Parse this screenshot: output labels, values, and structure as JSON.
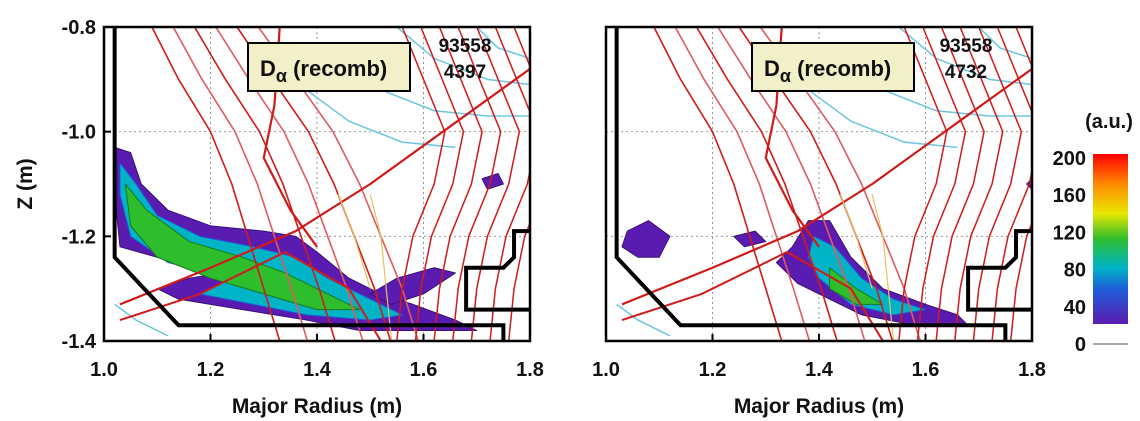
{
  "chart_data": [
    {
      "type": "heatmap",
      "panel": "left",
      "shot": "93558",
      "time": "4397",
      "label_main": "D",
      "label_sub": "α",
      "label_rest": " (recomb)",
      "xlabel": "Major Radius (m)",
      "ylabel": "Z (m)",
      "xlim": [
        1.0,
        1.8
      ],
      "ylim": [
        -1.4,
        -0.8
      ],
      "xticks": [
        "1.0",
        "1.2",
        "1.4",
        "1.6",
        "1.8"
      ],
      "yticks": [
        "-0.8",
        "-1.0",
        "-1.2",
        "-1.4"
      ],
      "grid": true,
      "emission_regions": [
        {
          "level": "low",
          "points": [
            [
              1.02,
              -1.03
            ],
            [
              1.05,
              -1.04
            ],
            [
              1.07,
              -1.1
            ],
            [
              1.12,
              -1.15
            ],
            [
              1.2,
              -1.18
            ],
            [
              1.3,
              -1.19
            ],
            [
              1.36,
              -1.2
            ],
            [
              1.4,
              -1.23
            ],
            [
              1.46,
              -1.28
            ],
            [
              1.52,
              -1.31
            ],
            [
              1.58,
              -1.33
            ],
            [
              1.66,
              -1.36
            ],
            [
              1.7,
              -1.38
            ],
            [
              1.6,
              -1.38
            ],
            [
              1.48,
              -1.38
            ],
            [
              1.38,
              -1.36
            ],
            [
              1.26,
              -1.34
            ],
            [
              1.14,
              -1.32
            ],
            [
              1.1,
              -1.3
            ],
            [
              1.16,
              -1.28
            ],
            [
              1.22,
              -1.27
            ],
            [
              1.1,
              -1.24
            ],
            [
              1.03,
              -1.22
            ],
            [
              1.02,
              -1.12
            ]
          ]
        },
        {
          "level": "mid",
          "points": [
            [
              1.03,
              -1.06
            ],
            [
              1.06,
              -1.1
            ],
            [
              1.1,
              -1.16
            ],
            [
              1.18,
              -1.2
            ],
            [
              1.28,
              -1.22
            ],
            [
              1.36,
              -1.24
            ],
            [
              1.42,
              -1.28
            ],
            [
              1.5,
              -1.32
            ],
            [
              1.56,
              -1.35
            ],
            [
              1.5,
              -1.36
            ],
            [
              1.38,
              -1.35
            ],
            [
              1.28,
              -1.33
            ],
            [
              1.18,
              -1.31
            ],
            [
              1.24,
              -1.28
            ],
            [
              1.12,
              -1.25
            ],
            [
              1.05,
              -1.2
            ],
            [
              1.03,
              -1.12
            ]
          ]
        },
        {
          "level": "high",
          "points": [
            [
              1.04,
              -1.1
            ],
            [
              1.08,
              -1.15
            ],
            [
              1.16,
              -1.21
            ],
            [
              1.26,
              -1.24
            ],
            [
              1.34,
              -1.27
            ],
            [
              1.42,
              -1.31
            ],
            [
              1.48,
              -1.34
            ],
            [
              1.4,
              -1.34
            ],
            [
              1.3,
              -1.31
            ],
            [
              1.2,
              -1.28
            ],
            [
              1.1,
              -1.24
            ],
            [
              1.05,
              -1.18
            ]
          ]
        },
        {
          "level": "low",
          "points": [
            [
              1.5,
              -1.31
            ],
            [
              1.55,
              -1.28
            ],
            [
              1.62,
              -1.26
            ],
            [
              1.66,
              -1.27
            ],
            [
              1.6,
              -1.31
            ],
            [
              1.54,
              -1.33
            ]
          ]
        },
        {
          "level": "low",
          "points": [
            [
              1.71,
              -1.09
            ],
            [
              1.74,
              -1.08
            ],
            [
              1.75,
              -1.1
            ],
            [
              1.72,
              -1.11
            ]
          ]
        }
      ]
    },
    {
      "type": "heatmap",
      "panel": "right",
      "shot": "93558",
      "time": "4732",
      "label_main": "D",
      "label_sub": "α",
      "label_rest": " (recomb)",
      "xlabel": "Major Radius (m)",
      "xlim": [
        1.0,
        1.8
      ],
      "ylim": [
        -1.4,
        -0.8
      ],
      "xticks": [
        "1.0",
        "1.2",
        "1.4",
        "1.6",
        "1.8"
      ],
      "grid": true,
      "emission_regions": [
        {
          "level": "low",
          "points": [
            [
              1.04,
              -1.19
            ],
            [
              1.08,
              -1.17
            ],
            [
              1.12,
              -1.2
            ],
            [
              1.1,
              -1.24
            ],
            [
              1.06,
              -1.24
            ],
            [
              1.03,
              -1.22
            ]
          ]
        },
        {
          "level": "low",
          "points": [
            [
              1.24,
              -1.2
            ],
            [
              1.28,
              -1.19
            ],
            [
              1.3,
              -1.21
            ],
            [
              1.26,
              -1.22
            ]
          ]
        },
        {
          "level": "low",
          "points": [
            [
              1.32,
              -1.25
            ],
            [
              1.35,
              -1.22
            ],
            [
              1.38,
              -1.17
            ],
            [
              1.42,
              -1.17
            ],
            [
              1.46,
              -1.24
            ],
            [
              1.52,
              -1.3
            ],
            [
              1.6,
              -1.33
            ],
            [
              1.66,
              -1.35
            ],
            [
              1.68,
              -1.37
            ],
            [
              1.58,
              -1.37
            ],
            [
              1.48,
              -1.35
            ],
            [
              1.42,
              -1.32
            ],
            [
              1.36,
              -1.29
            ]
          ]
        },
        {
          "level": "mid",
          "points": [
            [
              1.39,
              -1.2
            ],
            [
              1.43,
              -1.22
            ],
            [
              1.48,
              -1.28
            ],
            [
              1.54,
              -1.32
            ],
            [
              1.6,
              -1.34
            ],
            [
              1.54,
              -1.35
            ],
            [
              1.46,
              -1.33
            ],
            [
              1.4,
              -1.28
            ],
            [
              1.38,
              -1.24
            ]
          ]
        },
        {
          "level": "high",
          "points": [
            [
              1.42,
              -1.26
            ],
            [
              1.47,
              -1.3
            ],
            [
              1.52,
              -1.33
            ],
            [
              1.47,
              -1.33
            ],
            [
              1.42,
              -1.3
            ]
          ]
        },
        {
          "level": "low",
          "points": [
            [
              1.79,
              -1.1
            ],
            [
              1.8,
              -1.09
            ],
            [
              1.8,
              -1.11
            ]
          ]
        }
      ]
    }
  ],
  "colorbar": {
    "unit_label": "(a.u.)",
    "ticks": [
      "200",
      "160",
      "120",
      "80",
      "40",
      "0"
    ],
    "range": [
      0,
      200
    ],
    "colors": [
      "#ff0000",
      "#ff8c00",
      "#e8e800",
      "#2dbd2d",
      "#00b4c8",
      "#1f5bd8",
      "#5a1cb0"
    ]
  }
}
